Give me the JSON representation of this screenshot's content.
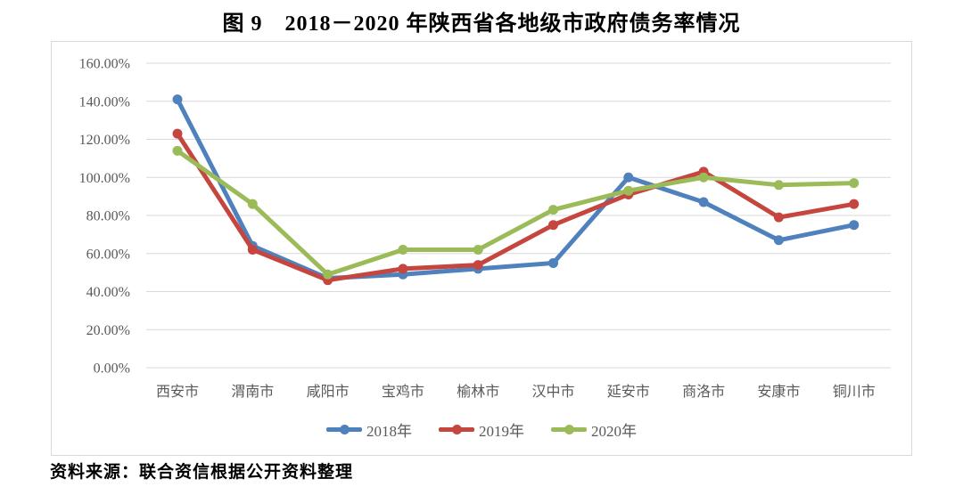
{
  "page": {
    "title": "图 9　2018－2020 年陕西省各地级市政府债务率情况",
    "source": "资料来源：联合资信根据公开资料整理"
  },
  "chart_data": {
    "type": "line",
    "title": "图 9　2018－2020 年陕西省各地级市政府债务率情况",
    "categories": [
      "西安市",
      "渭南市",
      "咸阳市",
      "宝鸡市",
      "榆林市",
      "汉中市",
      "延安市",
      "商洛市",
      "安康市",
      "铜川市"
    ],
    "series": [
      {
        "name": "2018年",
        "color": "#4F81BD",
        "values": [
          141,
          64,
          47,
          49,
          52,
          55,
          100,
          87,
          67,
          75
        ]
      },
      {
        "name": "2019年",
        "color": "#C5463F",
        "values": [
          123,
          62,
          46,
          52,
          54,
          75,
          91,
          103,
          79,
          86
        ]
      },
      {
        "name": "2020年",
        "color": "#9BBB59",
        "values": [
          114,
          86,
          49,
          62,
          62,
          83,
          93,
          100,
          96,
          97
        ]
      }
    ],
    "xlabel": "",
    "ylabel": "",
    "ylim": [
      0,
      160
    ],
    "ytick_values": [
      0,
      20,
      40,
      60,
      80,
      100,
      120,
      140,
      160
    ],
    "ytick_labels": [
      "0.00%",
      "20.00%",
      "40.00%",
      "60.00%",
      "80.00%",
      "100.00%",
      "120.00%",
      "140.00%",
      "160.00%"
    ],
    "grid": "horizontal",
    "grid_color": "#d9d9d9",
    "legend_position": "bottom",
    "marker": "circle"
  }
}
